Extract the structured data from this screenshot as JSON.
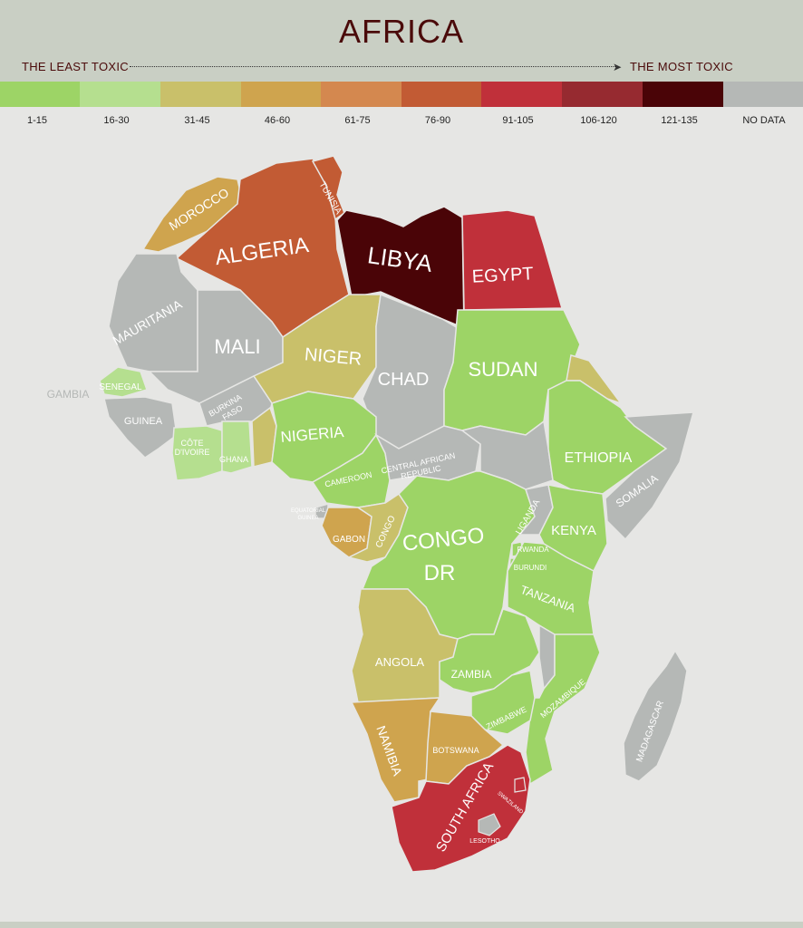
{
  "header": {
    "title": "AFRICA",
    "scale_left": "THE LEAST TOXIC",
    "scale_right": "THE MOST TOXIC"
  },
  "legend": [
    {
      "label": "1-15",
      "color": "#9dd466"
    },
    {
      "label": "16-30",
      "color": "#b5df8f"
    },
    {
      "label": "31-45",
      "color": "#c9c06a"
    },
    {
      "label": "46-60",
      "color": "#cfa44e"
    },
    {
      "label": "61-75",
      "color": "#d4884f"
    },
    {
      "label": "76-90",
      "color": "#c25b34"
    },
    {
      "label": "91-105",
      "color": "#c0303a"
    },
    {
      "label": "106-120",
      "color": "#962a30"
    },
    {
      "label": "121-135",
      "color": "#4a0407"
    },
    {
      "label": "NO DATA",
      "color": "#b5b8b6"
    }
  ],
  "countries": {
    "morocco": "MOROCCO",
    "algeria": "ALGERIA",
    "tunisia": "TUNISIA",
    "libya": "LIBYA",
    "egypt": "EGYPT",
    "mauritania": "MAURITANIA",
    "mali": "MALI",
    "niger": "NIGER",
    "chad": "CHAD",
    "sudan": "SUDAN",
    "gambia": "GAMBIA",
    "senegal": "SENEGAL",
    "guinea": "GUINEA",
    "burkina_faso_1": "BURKINA",
    "burkina_faso_2": "FASO",
    "cote_divoire_1": "CÔTE",
    "cote_divoire_2": "D'IVOIRE",
    "ghana": "GHANA",
    "nigeria": "NIGERIA",
    "cameroon": "CAMEROON",
    "car_1": "CENTRAL AFRICAN",
    "car_2": "REPUBLIC",
    "ethiopia": "ETHIOPIA",
    "somalia": "SOMALIA",
    "equatorial_guinea_1": "EQUATORIAL",
    "equatorial_guinea_2": "GUINEA",
    "gabon": "GABON",
    "congo": "CONGO",
    "congo_dr_1": "CONGO",
    "congo_dr_2": "DR",
    "uganda": "UGANDA",
    "kenya": "KENYA",
    "rwanda": "RWANDA",
    "burundi": "BURUNDI",
    "tanzania": "TANZANIA",
    "angola": "ANGOLA",
    "zambia": "ZAMBIA",
    "zimbabwe": "ZIMBABWE",
    "mozambique": "MOZAMBIQUE",
    "madagascar": "MADAGASCAR",
    "namibia": "NAMIBIA",
    "botswana": "BOTSWANA",
    "south_africa": "SOUTH AFRICA",
    "swaziland": "SWAZILAND",
    "lesotho": "LESOTHO"
  }
}
